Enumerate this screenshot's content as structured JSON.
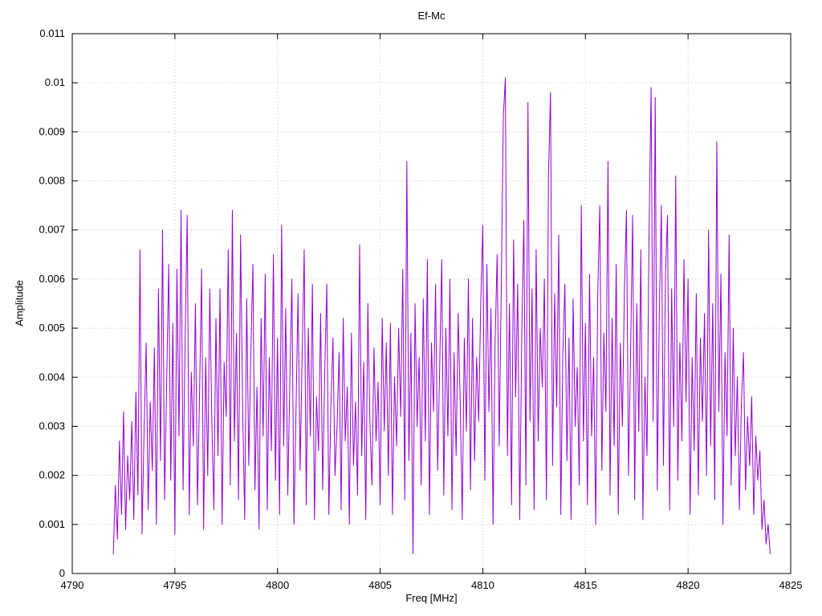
{
  "chart_data": {
    "type": "line",
    "title": "Ef-Mc",
    "xlabel": "Freq [MHz]",
    "ylabel": "Amplitude",
    "xlim": [
      4790,
      4825
    ],
    "ylim": [
      0,
      0.011
    ],
    "xticks": [
      4790,
      4795,
      4800,
      4805,
      4810,
      4815,
      4820,
      4825
    ],
    "xtick_labels": [
      "4790",
      "4795",
      "4800",
      "4805",
      "4810",
      "4815",
      "4820",
      "4825"
    ],
    "yticks": [
      0,
      0.001,
      0.002,
      0.003,
      0.004,
      0.005,
      0.006,
      0.007,
      0.008,
      0.009,
      0.01,
      0.011
    ],
    "ytick_labels": [
      "0",
      "0.001",
      "0.002",
      "0.003",
      "0.004",
      "0.005",
      "0.006",
      "0.007",
      "0.008",
      "0.009",
      "0.01",
      "0.011"
    ],
    "grid": "dotted",
    "legend": "none",
    "line_color": "#9400d3",
    "grid_color": "#c8c8c8",
    "border_color": "#000000",
    "series": [
      {
        "name": "Ef-Mc",
        "x_start": 4792.0,
        "x_step": 0.1,
        "values": [
          0.0004,
          0.0018,
          0.0007,
          0.0027,
          0.0012,
          0.0033,
          0.0009,
          0.0024,
          0.0015,
          0.0031,
          0.0011,
          0.0037,
          0.0016,
          0.0066,
          0.0008,
          0.0029,
          0.0047,
          0.0013,
          0.0035,
          0.0021,
          0.0046,
          0.001,
          0.0058,
          0.0023,
          0.007,
          0.0015,
          0.0039,
          0.0063,
          0.0019,
          0.0051,
          0.0008,
          0.0062,
          0.0028,
          0.0074,
          0.0017,
          0.0048,
          0.0073,
          0.0012,
          0.0041,
          0.0026,
          0.0055,
          0.0014,
          0.0036,
          0.0062,
          0.0009,
          0.0044,
          0.002,
          0.0058,
          0.0031,
          0.0013,
          0.0052,
          0.0024,
          0.0058,
          0.001,
          0.0043,
          0.0032,
          0.0066,
          0.0018,
          0.0074,
          0.0027,
          0.0049,
          0.0015,
          0.0069,
          0.0034,
          0.0011,
          0.0056,
          0.0022,
          0.0045,
          0.0063,
          0.0017,
          0.0038,
          0.0009,
          0.0052,
          0.0028,
          0.0061,
          0.0013,
          0.0044,
          0.0025,
          0.0065,
          0.0019,
          0.0048,
          0.0012,
          0.0071,
          0.0026,
          0.0054,
          0.0016,
          0.0039,
          0.006,
          0.001,
          0.0033,
          0.0057,
          0.0021,
          0.0044,
          0.0066,
          0.0014,
          0.005,
          0.0028,
          0.0059,
          0.0011,
          0.0036,
          0.0025,
          0.0053,
          0.0017,
          0.0041,
          0.0059,
          0.0012,
          0.0034,
          0.0048,
          0.002,
          0.003,
          0.0045,
          0.0013,
          0.0052,
          0.0027,
          0.0038,
          0.001,
          0.0049,
          0.0022,
          0.0035,
          0.0016,
          0.0067,
          0.0024,
          0.0043,
          0.0011,
          0.0055,
          0.0031,
          0.0018,
          0.0046,
          0.0027,
          0.0039,
          0.0014,
          0.0052,
          0.0029,
          0.0047,
          0.002,
          0.0051,
          0.0012,
          0.004,
          0.0026,
          0.005,
          0.0032,
          0.0062,
          0.0015,
          0.0084,
          0.0023,
          0.0049,
          0.0004,
          0.0055,
          0.003,
          0.0044,
          0.0018,
          0.0056,
          0.0027,
          0.0064,
          0.0012,
          0.0047,
          0.0033,
          0.0059,
          0.0021,
          0.0042,
          0.0064,
          0.0016,
          0.005,
          0.0028,
          0.006,
          0.0013,
          0.0045,
          0.0024,
          0.0053,
          0.0035,
          0.0011,
          0.0048,
          0.0029,
          0.006,
          0.0017,
          0.0052,
          0.0023,
          0.0044,
          0.0031,
          0.0055,
          0.0071,
          0.0019,
          0.0063,
          0.0033,
          0.0054,
          0.001,
          0.0047,
          0.0065,
          0.0026,
          0.0058,
          0.0093,
          0.0101,
          0.0024,
          0.0055,
          0.0014,
          0.0068,
          0.0036,
          0.0059,
          0.0011,
          0.0049,
          0.0072,
          0.0018,
          0.0096,
          0.0031,
          0.0058,
          0.0013,
          0.0066,
          0.0027,
          0.005,
          0.0038,
          0.006,
          0.0015,
          0.0081,
          0.0098,
          0.0022,
          0.0057,
          0.0034,
          0.0069,
          0.0012,
          0.0045,
          0.0059,
          0.0023,
          0.0048,
          0.0011,
          0.0056,
          0.003,
          0.0042,
          0.0018,
          0.0075,
          0.0027,
          0.0051,
          0.0014,
          0.0061,
          0.0028,
          0.0044,
          0.001,
          0.0057,
          0.0075,
          0.0021,
          0.0049,
          0.0033,
          0.0084,
          0.0016,
          0.0052,
          0.0026,
          0.0063,
          0.0012,
          0.0047,
          0.003,
          0.0058,
          0.0074,
          0.002,
          0.0045,
          0.0073,
          0.0015,
          0.0055,
          0.0029,
          0.0066,
          0.0011,
          0.004,
          0.0024,
          0.007,
          0.0099,
          0.0031,
          0.0097,
          0.0017,
          0.0053,
          0.0075,
          0.0022,
          0.0061,
          0.0073,
          0.0013,
          0.0058,
          0.003,
          0.0081,
          0.0019,
          0.0047,
          0.0027,
          0.0064,
          0.0035,
          0.006,
          0.0012,
          0.0044,
          0.0025,
          0.0057,
          0.0016,
          0.0048,
          0.0031,
          0.0053,
          0.002,
          0.007,
          0.0026,
          0.0055,
          0.0015,
          0.0088,
          0.0033,
          0.0061,
          0.001,
          0.0045,
          0.0028,
          0.0069,
          0.0018,
          0.005,
          0.0024,
          0.004,
          0.0013,
          0.0035,
          0.0045,
          0.0017,
          0.0032,
          0.0022,
          0.0036,
          0.0012,
          0.0028,
          0.0019,
          0.0025,
          0.0009,
          0.0015,
          0.0006,
          0.001,
          0.0004
        ]
      }
    ]
  }
}
